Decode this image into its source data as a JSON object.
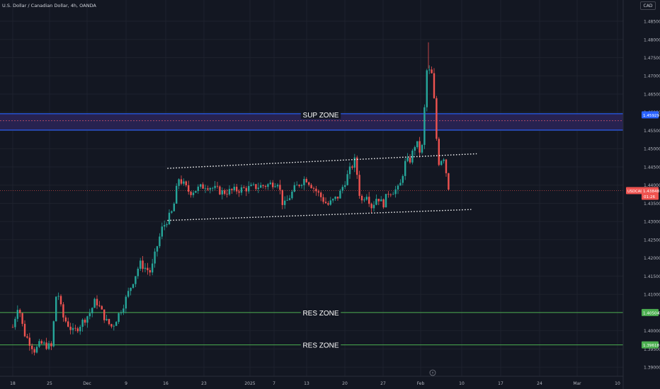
{
  "header": {
    "symbol_title": "U.S. Dollar / Canadian Dollar, 4h, OANDA",
    "currency_button": "CAD"
  },
  "colors": {
    "background": "#131722",
    "bull": "#26a69a",
    "bear": "#ef5350",
    "grid": "#1e222d",
    "sup_zone": "#2962ff",
    "res_zone": "#4caf50",
    "trendline": "#ffffff"
  },
  "chart_data": {
    "type": "candlestick",
    "ylim": [
      1.3875,
      1.4885
    ],
    "y_ticks": [
      "1.48500",
      "1.48000",
      "1.47500",
      "1.47000",
      "1.46500",
      "1.46000",
      "1.45500",
      "1.45000",
      "1.44500",
      "1.44000",
      "1.43500",
      "1.43000",
      "1.42500",
      "1.42000",
      "1.41500",
      "1.41000",
      "1.40500",
      "1.40000",
      "1.39500",
      "1.39000"
    ],
    "x_ticks": [
      "18",
      "25",
      "Dec",
      "9",
      "16",
      "23",
      "2025",
      "7",
      "13",
      "20",
      "27",
      "Feb",
      "10",
      "17",
      "24",
      "Mar",
      "10"
    ],
    "last_price_label": {
      "symbol": "USDCAD",
      "price": "1.43848",
      "countdown": "01:26"
    },
    "zones": [
      {
        "label": "SUP ZONE",
        "kind": "support",
        "top": 1.4596,
        "bottom": 1.4551,
        "mid": 1.45768,
        "price_label": "1.45929"
      },
      {
        "label": "RES ZONE",
        "kind": "resistance",
        "level": 1.405,
        "price_label": "1.40504"
      },
      {
        "label": "RES ZONE",
        "kind": "resistance",
        "level": 1.39613,
        "price_label": "1.39618"
      }
    ],
    "trendlines": [
      {
        "from": [
          "Dec 16",
          1.4446
        ],
        "to": [
          "Feb 10",
          1.4486
        ],
        "style": "dotted"
      },
      {
        "from": [
          "Dec 16",
          1.4303
        ],
        "to": [
          "Feb 09",
          1.4333
        ],
        "style": "dotted"
      }
    ],
    "price_path": [
      [
        "Nov 18",
        1.401
      ],
      [
        "Nov 19",
        1.4075
      ],
      [
        "Nov 20",
        1.3995
      ],
      [
        "Nov 22",
        1.3945
      ],
      [
        "Nov 23",
        1.3965
      ],
      [
        "Nov 25",
        1.3955
      ],
      [
        "Nov 26",
        1.412
      ],
      [
        "Nov 27",
        1.404
      ],
      [
        "Nov 29",
        1.3995
      ],
      [
        "Dec 02",
        1.405
      ],
      [
        "Dec 03",
        1.4085
      ],
      [
        "Dec 05",
        1.4025
      ],
      [
        "Dec 06",
        1.401
      ],
      [
        "Dec 08",
        1.407
      ],
      [
        "Dec 10",
        1.4145
      ],
      [
        "Dec 11",
        1.4185
      ],
      [
        "Dec 13",
        1.416
      ],
      [
        "Dec 14",
        1.4225
      ],
      [
        "Dec 15",
        1.428
      ],
      [
        "Dec 17",
        1.433
      ],
      [
        "Dec 18",
        1.442
      ],
      [
        "Dec 20",
        1.438
      ],
      [
        "Dec 23",
        1.44
      ],
      [
        "Dec 26",
        1.438
      ],
      [
        "Dec 30",
        1.439
      ],
      [
        "Jan 03",
        1.44
      ],
      [
        "Jan 05",
        1.441
      ],
      [
        "Jan 06",
        1.434
      ],
      [
        "Jan 08",
        1.439
      ],
      [
        "Jan 10",
        1.442
      ],
      [
        "Jan 14",
        1.4345
      ],
      [
        "Jan 16",
        1.437
      ],
      [
        "Jan 18",
        1.444
      ],
      [
        "Jan 19",
        1.447
      ],
      [
        "Jan 20",
        1.435
      ],
      [
        "Jan 21",
        1.438
      ],
      [
        "Jan 22",
        1.434
      ],
      [
        "Jan 23",
        1.437
      ],
      [
        "Jan 24",
        1.4345
      ],
      [
        "Jan 25",
        1.438
      ],
      [
        "Jan 27",
        1.439
      ],
      [
        "Jan 28",
        1.446
      ],
      [
        "Jan 29",
        1.447
      ],
      [
        "Jan 30",
        1.452
      ],
      [
        "Jan 31",
        1.448
      ],
      [
        "Feb 01",
        1.472
      ],
      [
        "Feb 02",
        1.47
      ],
      [
        "Feb 03",
        1.446
      ],
      [
        "Feb 04",
        1.448
      ],
      [
        "Feb 05",
        1.4385
      ]
    ]
  }
}
